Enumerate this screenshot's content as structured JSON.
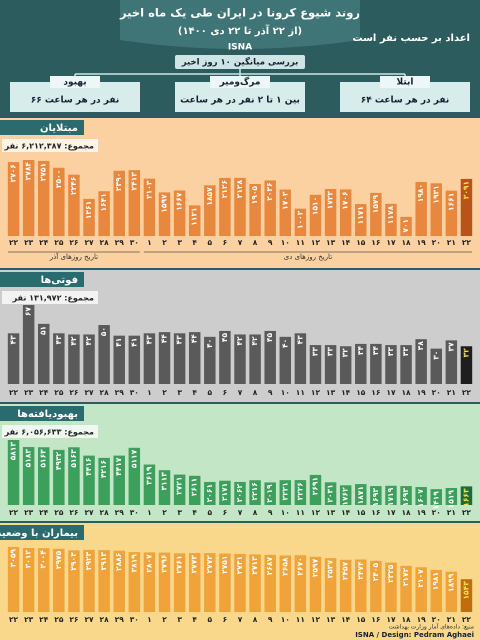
{
  "header": {
    "title": "روند شیوع کرونا در ایران طی یک ماه اخیر",
    "subtitle": "(از ۲۲ آذر تا ۲۲ دی ۱۴۰۰)",
    "brand": "ISNA",
    "unit_note": "اعداد بر حسب نفر است",
    "summary_title": "بررسی میانگین ۱۰ روز اخیر",
    "boxes": [
      {
        "label": "ابتلا",
        "text": "۶۴ نفر در هر ساعت"
      },
      {
        "label": "مرگ‌ومیر",
        "text": "بین ۱ تا ۲ نفر در هر ساعت"
      },
      {
        "label": "بهبود",
        "text": "۶۶ نفر در هر ساعت"
      }
    ]
  },
  "chart_data": [
    {
      "type": "bar",
      "title": "مبتلایان",
      "total": "مجموع: ۶,۲۱۲,۳۸۷ نفر",
      "month_labels": [
        "تاریخ روزهای آذر",
        "تاریخ روزهای دی"
      ],
      "background": "#fbd1a2",
      "color": "#e8883e",
      "highlight_color": "#b8541a",
      "label_color": "#ffffff",
      "categories": [
        "۲۲",
        "۲۳",
        "۲۴",
        "۲۵",
        "۲۶",
        "۲۷",
        "۲۸",
        "۲۹",
        "۳۰",
        "۱",
        "۲",
        "۳",
        "۴",
        "۵",
        "۶",
        "۷",
        "۸",
        "۹",
        "۱۰",
        "۱۱",
        "۱۲",
        "۱۳",
        "۱۴",
        "۱۵",
        "۱۶",
        "۱۷",
        "۱۸",
        "۱۹",
        "۲۰",
        "۲۱",
        "۲۲"
      ],
      "values": [
        2706,
        2784,
        2751,
        2500,
        2246,
        1361,
        1641,
        2390,
        2413,
        2103,
        1597,
        1667,
        1121,
        1857,
        2126,
        2128,
        1905,
        2036,
        1702,
        1002,
        1510,
        1722,
        1706,
        1171,
        1579,
        1178,
        701,
        1980,
        1931,
        1661,
        2091
      ],
      "value_labels": [
        "۲۷۰۶",
        "۲۷۸۴",
        "۲۷۵۱",
        "۲۵۰۰",
        "۲۲۴۶",
        "۱۳۶۱",
        "۱۶۴۱",
        "۲۳۹۰",
        "۲۴۱۳",
        "۲۱۰۳",
        "۱۵۹۷",
        "۱۶۶۷",
        "۱۱۲۱",
        "۱۸۵۷",
        "۲۱۲۶",
        "۲۱۲۸",
        "۱۹۰۵",
        "۲۰۳۶",
        "۱۷۰۲",
        "۱۰۰۲",
        "۱۵۱۰",
        "۱۷۲۲",
        "۱۷۰۶",
        "۱۱۷۱",
        "۱۵۷۹",
        "۱۱۷۸",
        "۷۰۱",
        "۱۹۸۰",
        "۱۹۳۱",
        "۱۶۶۱",
        "۲۰۹۱"
      ]
    },
    {
      "type": "bar",
      "title": "فوتی‌ها",
      "total": "مجموع: ۱۳۱,۹۷۲ نفر",
      "background": "#cdcdcd",
      "color": "#5a5a5a",
      "highlight_color": "#1e1e1e",
      "label_color": "#ffffff",
      "categories": [
        "۲۲",
        "۲۳",
        "۲۴",
        "۲۵",
        "۲۶",
        "۲۷",
        "۲۸",
        "۲۹",
        "۳۰",
        "۱",
        "۲",
        "۳",
        "۴",
        "۵",
        "۶",
        "۷",
        "۸",
        "۹",
        "۱۰",
        "۱۱",
        "۱۲",
        "۱۳",
        "۱۴",
        "۱۵",
        "۱۶",
        "۱۷",
        "۱۸",
        "۱۹",
        "۲۰",
        "۲۱",
        "۲۲"
      ],
      "values": [
        43,
        67,
        51,
        43,
        42,
        42,
        50,
        41,
        41,
        43,
        44,
        43,
        44,
        40,
        45,
        42,
        42,
        45,
        40,
        43,
        33,
        33,
        32,
        34,
        34,
        33,
        33,
        38,
        30,
        37,
        32
      ],
      "value_labels": [
        "۴۳",
        "۶۷",
        "۵۱",
        "۴۳",
        "۴۲",
        "۴۲",
        "۵۰",
        "۴۱",
        "۴۱",
        "۴۳",
        "۴۴",
        "۴۳",
        "۴۴",
        "۴۰",
        "۴۵",
        "۴۲",
        "۴۲",
        "۴۵",
        "۴۰",
        "۴۳",
        "۳۳",
        "۳۳",
        "۳۲",
        "۳۴",
        "۳۴",
        "۳۳",
        "۳۳",
        "۳۸",
        "۳۰",
        "۳۷",
        "۳۲"
      ]
    },
    {
      "type": "bar",
      "title": "بهبودیافته‌ها",
      "total": "مجموع: ۶,۰۵۶,۶۳۳ نفر",
      "background": "#c3e6c6",
      "color": "#3d9f5c",
      "highlight_color": "#1f6a36",
      "label_color": "#ffffff",
      "categories": [
        "۲۲",
        "۲۳",
        "۲۴",
        "۲۵",
        "۲۶",
        "۲۷",
        "۲۸",
        "۲۹",
        "۳۰",
        "۱",
        "۲",
        "۳",
        "۴",
        "۵",
        "۶",
        "۷",
        "۸",
        "۹",
        "۱۰",
        "۱۱",
        "۱۲",
        "۱۳",
        "۱۴",
        "۱۵",
        "۱۶",
        "۱۷",
        "۱۸",
        "۱۹",
        "۲۰",
        "۲۱",
        "۲۲"
      ],
      "values": [
        5813,
        5183,
        5163,
        4932,
        5163,
        4416,
        4216,
        4417,
        5117,
        3619,
        3113,
        2721,
        2611,
        2061,
        2171,
        2062,
        2216,
        2019,
        2221,
        2226,
        2691,
        2031,
        1762,
        1871,
        1693,
        1719,
        1693,
        1607,
        1419,
        1519,
        1663
      ],
      "value_labels": [
        "۵۸۱۳",
        "۵۱۸۳",
        "۵۱۶۳",
        "۴۹۳۲",
        "۵۱۶۳",
        "۴۴۱۶",
        "۴۲۱۶",
        "۴۴۱۷",
        "۵۱۱۷",
        "۳۶۱۹",
        "۳۱۱۳",
        "۲۷۲۱",
        "۲۶۱۱",
        "۲۰۶۱",
        "۲۱۷۱",
        "۲۰۶۲",
        "۲۲۱۶",
        "۲۰۱۹",
        "۲۲۲۱",
        "۲۲۲۶",
        "۲۶۹۱",
        "۲۰۳۱",
        "۱۷۶۲",
        "۱۸۷۱",
        "۱۶۹۳",
        "۱۷۱۹",
        "۱۶۹۳",
        "۱۶۰۷",
        "۱۴۱۹",
        "۱۵۱۹",
        "۱۶۶۳"
      ]
    },
    {
      "type": "bar",
      "title": "بیماران با وضعیت حاد",
      "background": "#f9d88c",
      "color": "#f0a33a",
      "highlight_color": "#c06d10",
      "label_color": "#ffffff",
      "categories": [
        "۲۲",
        "۲۳",
        "۲۴",
        "۲۵",
        "۲۶",
        "۲۷",
        "۲۸",
        "۲۹",
        "۳۰",
        "۱",
        "۲",
        "۳",
        "۴",
        "۵",
        "۶",
        "۷",
        "۸",
        "۹",
        "۱۰",
        "۱۱",
        "۱۲",
        "۱۳",
        "۱۴",
        "۱۵",
        "۱۶",
        "۱۷",
        "۱۸",
        "۱۹",
        "۲۰",
        "۲۱",
        "۲۲"
      ],
      "values": [
        3059,
        3012,
        3004,
        2975,
        2903,
        2923,
        2913,
        2886,
        2819,
        2807,
        2796,
        2761,
        2773,
        2772,
        2751,
        2731,
        2713,
        2687,
        2658,
        2670,
        2597,
        2537,
        2457,
        2474,
        2405,
        2325,
        2172,
        2107,
        1981,
        1899,
        1543
      ],
      "value_labels": [
        "۳۰۵۹",
        "۳۰۱۲",
        "۳۰۰۴",
        "۲۹۷۵",
        "۲۹۰۳",
        "۲۹۲۳",
        "۲۹۱۳",
        "۲۸۸۶",
        "۲۸۱۹",
        "۲۸۰۷",
        "۲۷۹۶",
        "۲۷۶۱",
        "۲۷۷۳",
        "۲۷۷۲",
        "۲۷۵۱",
        "۲۷۳۱",
        "۲۷۱۳",
        "۲۶۸۷",
        "۲۶۵۸",
        "۲۶۷۰",
        "۲۵۹۷",
        "۲۵۳۷",
        "۲۴۵۷",
        "۲۴۷۴",
        "۲۴۰۵",
        "۲۳۲۵",
        "۲۱۷۲",
        "۲۱۰۷",
        "۱۹۸۱",
        "۱۸۹۹",
        "۱۵۴۳"
      ]
    }
  ],
  "footer": {
    "source": "منبع: داده‌های آمار وزارت بهداشت",
    "credit": "ISNA / Design: Pedram Aghaei"
  }
}
